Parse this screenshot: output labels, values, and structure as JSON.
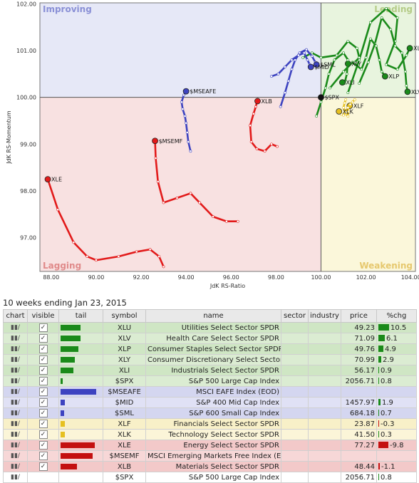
{
  "chart_data": {
    "type": "scatter",
    "xlabel": "JdK RS-Ratio",
    "ylabel": "JdK RS-Momentum",
    "xlim": [
      87.5,
      104.2
    ],
    "ylim": [
      96.28,
      102.02
    ],
    "xticks": [
      "88.00",
      "90.00",
      "92.00",
      "94.00",
      "96.00",
      "98.00",
      "100.00",
      "102.00",
      "104.00"
    ],
    "xtick_values": [
      88,
      90,
      92,
      94,
      96,
      98,
      100,
      102,
      104
    ],
    "yticks": [
      "97.00",
      "98.00",
      "99.00",
      "100.00",
      "101.00",
      "102.00"
    ],
    "ytick_values": [
      97,
      98,
      99,
      100,
      101,
      102
    ],
    "center": [
      100,
      100
    ],
    "quadrants": {
      "improving": "Improving",
      "leading": "Leading",
      "lagging": "Lagging",
      "weakening": "Weakening"
    },
    "quadrant_colors": {
      "improving": "#e6e8f7",
      "leading": "#e8f4de",
      "lagging": "#f8e1e1",
      "weakening": "#fbf7da"
    },
    "quadrant_label_colors": {
      "improving": "#8a90d6",
      "leading": "#b5cc88",
      "lagging": "#e08a8a",
      "weakening": "#e6c86e"
    },
    "series": [
      {
        "name": "XLU",
        "color": "#1a8a1a",
        "points": [
          [
            101.2,
            100.1
          ],
          [
            101.7,
            100.8
          ],
          [
            102.2,
            101.6
          ],
          [
            102.9,
            101.9
          ],
          [
            103.4,
            101.7
          ],
          [
            103.3,
            101.2
          ],
          [
            102.9,
            100.7
          ],
          [
            103.4,
            100.6
          ],
          [
            103.8,
            100.9
          ],
          [
            103.95,
            101.05
          ]
        ]
      },
      {
        "name": "XLV",
        "color": "#1a8a1a",
        "points": [
          [
            101.7,
            100.3
          ],
          [
            102.1,
            100.75
          ],
          [
            102.4,
            101.15
          ],
          [
            102.7,
            101.7
          ],
          [
            103.1,
            101.45
          ],
          [
            103.3,
            101.1
          ],
          [
            103.6,
            100.95
          ],
          [
            103.75,
            100.55
          ],
          [
            103.8,
            100.25
          ],
          [
            103.85,
            100.12
          ]
        ]
      },
      {
        "name": "XLP",
        "color": "#1a8a1a",
        "points": [
          [
            100.4,
            100.2
          ],
          [
            101,
            100.55
          ],
          [
            101.4,
            100.75
          ],
          [
            101.8,
            100.6
          ],
          [
            102,
            100.85
          ],
          [
            102.2,
            101.25
          ],
          [
            102.45,
            101.1
          ],
          [
            102.6,
            100.8
          ],
          [
            102.7,
            100.55
          ],
          [
            102.85,
            100.45
          ]
        ]
      },
      {
        "name": "XLY",
        "color": "#1a8a1a",
        "points": [
          [
            99.2,
            100.85
          ],
          [
            99.6,
            100.95
          ],
          [
            100,
            100.85
          ],
          [
            100.7,
            100.9
          ],
          [
            101.2,
            101.2
          ],
          [
            101.6,
            101.05
          ],
          [
            101.7,
            100.85
          ],
          [
            101.5,
            100.75
          ],
          [
            101.3,
            100.72
          ],
          [
            101.2,
            100.72
          ]
        ]
      },
      {
        "name": "XLI",
        "color": "#1a8a1a",
        "points": [
          [
            99.8,
            99.6
          ],
          [
            100,
            99.9
          ],
          [
            100.2,
            100.2
          ],
          [
            100.35,
            100.5
          ],
          [
            100.6,
            100.8
          ],
          [
            101,
            100.95
          ],
          [
            101.2,
            100.8
          ],
          [
            101.15,
            100.5
          ],
          [
            101.05,
            100.3
          ],
          [
            100.95,
            100.32
          ]
        ]
      },
      {
        "name": "$SML",
        "color": "#3d43c0",
        "points": [
          [
            98.2,
            99.8
          ],
          [
            98.4,
            100.1
          ],
          [
            98.55,
            100.35
          ],
          [
            98.7,
            100.6
          ],
          [
            98.85,
            100.8
          ],
          [
            99.05,
            100.95
          ],
          [
            99.35,
            101.02
          ],
          [
            99.6,
            100.88
          ],
          [
            99.75,
            100.75
          ],
          [
            99.8,
            100.7
          ]
        ]
      },
      {
        "name": "$MID",
        "color": "#3d43c0",
        "points": [
          [
            97.8,
            100.45
          ],
          [
            98.1,
            100.5
          ],
          [
            98.4,
            100.65
          ],
          [
            98.7,
            100.8
          ],
          [
            99,
            100.9
          ],
          [
            99.25,
            100.95
          ],
          [
            99.4,
            100.8
          ],
          [
            99.5,
            100.7
          ],
          [
            99.55,
            100.65
          ],
          [
            99.55,
            100.65
          ]
        ]
      },
      {
        "name": "$MSEAFE",
        "color": "#3d43c0",
        "points": [
          [
            94.2,
            98.85
          ],
          [
            94.1,
            99.05
          ],
          [
            94.05,
            99.25
          ],
          [
            94,
            99.45
          ],
          [
            93.95,
            99.6
          ],
          [
            93.85,
            99.75
          ],
          [
            93.8,
            99.9
          ],
          [
            93.9,
            100.05
          ],
          [
            93.98,
            100.1
          ],
          [
            94,
            100.13
          ]
        ]
      },
      {
        "name": "XLF",
        "color": "#e6c020",
        "points": [
          [
            101.1,
            99.95
          ],
          [
            101.05,
            99.88
          ],
          [
            101,
            99.78
          ],
          [
            101.1,
            99.65
          ],
          [
            101.2,
            99.6
          ],
          [
            101.2,
            99.7
          ],
          [
            101.22,
            99.8
          ],
          [
            101.25,
            99.83
          ],
          [
            101.27,
            99.83
          ],
          [
            101.28,
            99.82
          ]
        ]
      },
      {
        "name": "XLK",
        "color": "#e6c020",
        "points": [
          [
            101.5,
            99.95
          ],
          [
            101.4,
            99.9
          ],
          [
            101.3,
            99.85
          ],
          [
            101.2,
            99.78
          ],
          [
            101.1,
            99.68
          ],
          [
            101,
            99.62
          ],
          [
            100.9,
            99.64
          ],
          [
            100.85,
            99.68
          ],
          [
            100.8,
            99.69
          ],
          [
            100.8,
            99.7
          ]
        ]
      },
      {
        "name": "XLE",
        "color": "#e21a1a",
        "points": [
          [
            93,
            96.38
          ],
          [
            92.8,
            96.6
          ],
          [
            92.4,
            96.75
          ],
          [
            91.8,
            96.7
          ],
          [
            91,
            96.6
          ],
          [
            90,
            96.52
          ],
          [
            89.6,
            96.6
          ],
          [
            89,
            96.9
          ],
          [
            88.3,
            97.6
          ],
          [
            87.85,
            98.25
          ]
        ]
      },
      {
        "name": "$MSEMF",
        "color": "#e21a1a",
        "points": [
          [
            96.3,
            97.35
          ],
          [
            95.8,
            97.35
          ],
          [
            95.2,
            97.45
          ],
          [
            94.6,
            97.75
          ],
          [
            94.2,
            97.95
          ],
          [
            93.6,
            97.85
          ],
          [
            93,
            97.75
          ],
          [
            92.75,
            98.2
          ],
          [
            92.65,
            98.7
          ],
          [
            92.62,
            99.07
          ]
        ]
      },
      {
        "name": "XLB",
        "color": "#e21a1a",
        "points": [
          [
            98.05,
            98.95
          ],
          [
            97.8,
            99.0
          ],
          [
            97.5,
            98.85
          ],
          [
            97.15,
            98.9
          ],
          [
            96.9,
            99.05
          ],
          [
            96.85,
            99.4
          ],
          [
            97,
            99.65
          ],
          [
            97.1,
            99.8
          ],
          [
            97.15,
            99.9
          ],
          [
            97.18,
            99.92
          ]
        ]
      },
      {
        "name": "$SPX",
        "color": "#111111",
        "points": [
          [
            100,
            100
          ]
        ]
      }
    ]
  },
  "caption": "10 weeks ending Jan 23, 2015",
  "table": {
    "headers": [
      "chart",
      "visible",
      "tail",
      "symbol",
      "name",
      "sector",
      "industry",
      "price",
      "%chg"
    ],
    "rows": [
      {
        "chart": "▮▮/",
        "visible": "✓",
        "symbol": "XLU",
        "name": "Utilities Select Sector SPDR",
        "price": "49.23",
        "chg": "10.5",
        "chg_value": 10.5,
        "tail_color": "#1a8a1a",
        "tail_length": 0.55,
        "row_bg": "#cfe6c4"
      },
      {
        "chart": "▮▮/",
        "visible": "✓",
        "symbol": "XLV",
        "name": "Health Care Select Sector SPDR",
        "price": "71.09",
        "chg": "6.1",
        "chg_value": 6.1,
        "tail_color": "#1a8a1a",
        "tail_length": 0.55,
        "row_bg": "#dbecd2"
      },
      {
        "chart": "▮▮/",
        "visible": "✓",
        "symbol": "XLP",
        "name": "Consumer Staples Select Sector SPDR",
        "price": "49.76",
        "chg": "4.9",
        "chg_value": 4.9,
        "tail_color": "#1a8a1a",
        "tail_length": 0.5,
        "row_bg": "#cfe6c4"
      },
      {
        "chart": "▮▮/",
        "visible": "✓",
        "symbol": "XLY",
        "name": "Consumer Discretionary Select Sector SPDR",
        "price": "70.99",
        "chg": "2.9",
        "chg_value": 2.9,
        "tail_color": "#1a8a1a",
        "tail_length": 0.4,
        "row_bg": "#dbecd2"
      },
      {
        "chart": "▮▮/",
        "visible": "✓",
        "symbol": "XLI",
        "name": "Industrials Select Sector SPDR",
        "price": "56.17",
        "chg": "0.9",
        "chg_value": 0.9,
        "tail_color": "#1a8a1a",
        "tail_length": 0.35,
        "row_bg": "#cfe6c4"
      },
      {
        "chart": "▮▮/",
        "visible": "✓",
        "symbol": "$SPX",
        "name": "S&P 500 Large Cap Index",
        "price": "2056.71",
        "chg": "0.8",
        "chg_value": 0.8,
        "tail_color": "#1a8a1a",
        "tail_length": 0.05,
        "row_bg": "#dbecd2"
      },
      {
        "chart": "▮▮/",
        "visible": "✓",
        "symbol": "$MSEAFE",
        "name": "MSCI EAFE Index (EOD)",
        "price": "",
        "chg": "",
        "chg_value": null,
        "tail_color": "#3d43c0",
        "tail_length": 1.0,
        "row_bg": "#d4d6f0"
      },
      {
        "chart": "▮▮/",
        "visible": "✓",
        "symbol": "$MID",
        "name": "S&P 400 Mid Cap Index",
        "price": "1457.97",
        "chg": "1.9",
        "chg_value": 1.9,
        "tail_color": "#3d43c0",
        "tail_length": 0.12,
        "row_bg": "#e0e1f5"
      },
      {
        "chart": "▮▮/",
        "visible": "✓",
        "symbol": "$SML",
        "name": "S&P 600 Small Cap Index",
        "price": "684.18",
        "chg": "0.7",
        "chg_value": 0.7,
        "tail_color": "#3d43c0",
        "tail_length": 0.1,
        "row_bg": "#d4d6f0"
      },
      {
        "chart": "▮▮/",
        "visible": "✓",
        "symbol": "XLF",
        "name": "Financials Select Sector SPDR",
        "price": "23.87",
        "chg": "-0.3",
        "chg_value": -0.3,
        "tail_color": "#e6c020",
        "tail_length": 0.12,
        "row_bg": "#f8f0c8"
      },
      {
        "chart": "▮▮/",
        "visible": "✓",
        "symbol": "XLK",
        "name": "Technology Select Sector SPDR",
        "price": "41.50",
        "chg": "0.3",
        "chg_value": 0.3,
        "tail_color": "#e6c020",
        "tail_length": 0.12,
        "row_bg": "#fbf5d8"
      },
      {
        "chart": "▮▮/",
        "visible": "✓",
        "symbol": "XLE",
        "name": "Energy Select Sector SPDR",
        "price": "77.27",
        "chg": "-9.8",
        "chg_value": -9.8,
        "tail_color": "#c41010",
        "tail_length": 0.95,
        "row_bg": "#f3c9c9"
      },
      {
        "chart": "▮▮/",
        "visible": "✓",
        "symbol": "$MSEMF",
        "name": "MSCI Emerging Markets Free Index (EOD)",
        "price": "",
        "chg": "",
        "chg_value": null,
        "tail_color": "#c41010",
        "tail_length": 0.9,
        "row_bg": "#f7d7d7"
      },
      {
        "chart": "▮▮/",
        "visible": "✓",
        "symbol": "XLB",
        "name": "Materials Select Sector SPDR",
        "price": "48.44",
        "chg": "-1.1",
        "chg_value": -1.1,
        "tail_color": "#c41010",
        "tail_length": 0.45,
        "row_bg": "#f3c9c9"
      },
      {
        "chart": "▮▮/",
        "visible": "",
        "symbol": "$SPX",
        "name": "S&P 500 Large Cap Index",
        "price": "2056.71",
        "chg": "0.8",
        "chg_value": 0.8,
        "tail_color": "",
        "tail_length": 0,
        "row_bg": "#ffffff"
      }
    ]
  }
}
